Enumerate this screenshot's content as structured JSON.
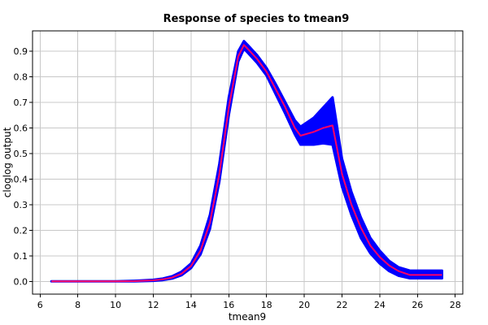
{
  "chart_data": {
    "type": "line",
    "title": "Response of species to tmean9",
    "xlabel": "tmean9",
    "ylabel": "cloglog output",
    "xlim": [
      5.6,
      28.4
    ],
    "ylim": [
      -0.05,
      0.98
    ],
    "xticks": [
      6,
      8,
      10,
      12,
      14,
      16,
      18,
      20,
      22,
      24,
      26,
      28
    ],
    "yticks": [
      0.0,
      0.1,
      0.2,
      0.3,
      0.4,
      0.5,
      0.6,
      0.7,
      0.8,
      0.9
    ],
    "grid": true,
    "colors": {
      "band": "#0000ff",
      "mean": "#ff0066",
      "grid": "#c8c8c8"
    },
    "series": [
      {
        "role": "mean",
        "x": [
          6.6,
          8,
          10,
          11,
          12,
          12.5,
          13,
          13.5,
          14,
          14.5,
          15,
          15.5,
          16,
          16.5,
          16.8,
          17,
          17.5,
          18,
          18.5,
          19,
          19.5,
          19.8,
          20.5,
          21,
          21.5,
          22,
          22.5,
          23,
          23.5,
          24,
          24.5,
          25,
          25.6,
          26,
          27.3
        ],
        "y": [
          0.0,
          0.0,
          0.0,
          0.001,
          0.004,
          0.008,
          0.015,
          0.03,
          0.06,
          0.12,
          0.23,
          0.42,
          0.68,
          0.88,
          0.925,
          0.91,
          0.87,
          0.82,
          0.75,
          0.68,
          0.6,
          0.57,
          0.585,
          0.6,
          0.61,
          0.42,
          0.3,
          0.21,
          0.14,
          0.095,
          0.062,
          0.04,
          0.025,
          0.025,
          0.025
        ]
      },
      {
        "role": "upper",
        "x": [
          6.6,
          8,
          10,
          11,
          12,
          12.5,
          13,
          13.5,
          14,
          14.5,
          15,
          15.5,
          16,
          16.5,
          16.8,
          17,
          17.5,
          18,
          18.5,
          19,
          19.5,
          19.8,
          20.5,
          21,
          21.5,
          22,
          22.5,
          23,
          23.5,
          24,
          24.5,
          25,
          25.6,
          26,
          27.3
        ],
        "y": [
          0.0,
          0.0,
          0.0,
          0.002,
          0.006,
          0.011,
          0.02,
          0.038,
          0.07,
          0.14,
          0.26,
          0.46,
          0.72,
          0.9,
          0.94,
          0.925,
          0.885,
          0.835,
          0.77,
          0.7,
          0.63,
          0.605,
          0.64,
          0.68,
          0.72,
          0.48,
          0.35,
          0.25,
          0.17,
          0.12,
          0.08,
          0.055,
          0.042,
          0.042,
          0.042
        ]
      },
      {
        "role": "lower",
        "x": [
          6.6,
          8,
          10,
          11,
          12,
          12.5,
          13,
          13.5,
          14,
          14.5,
          15,
          15.5,
          16,
          16.5,
          16.8,
          17,
          17.5,
          18,
          18.5,
          19,
          19.5,
          19.8,
          20.5,
          21,
          21.5,
          22,
          22.5,
          23,
          23.5,
          24,
          24.5,
          25,
          25.6,
          26,
          27.3
        ],
        "y": [
          0.0,
          0.0,
          0.0,
          0.0,
          0.002,
          0.005,
          0.011,
          0.024,
          0.052,
          0.105,
          0.205,
          0.39,
          0.65,
          0.86,
          0.91,
          0.895,
          0.855,
          0.805,
          0.73,
          0.655,
          0.575,
          0.535,
          0.535,
          0.54,
          0.535,
          0.37,
          0.26,
          0.17,
          0.11,
          0.07,
          0.04,
          0.022,
          0.012,
          0.012,
          0.012
        ]
      }
    ]
  }
}
